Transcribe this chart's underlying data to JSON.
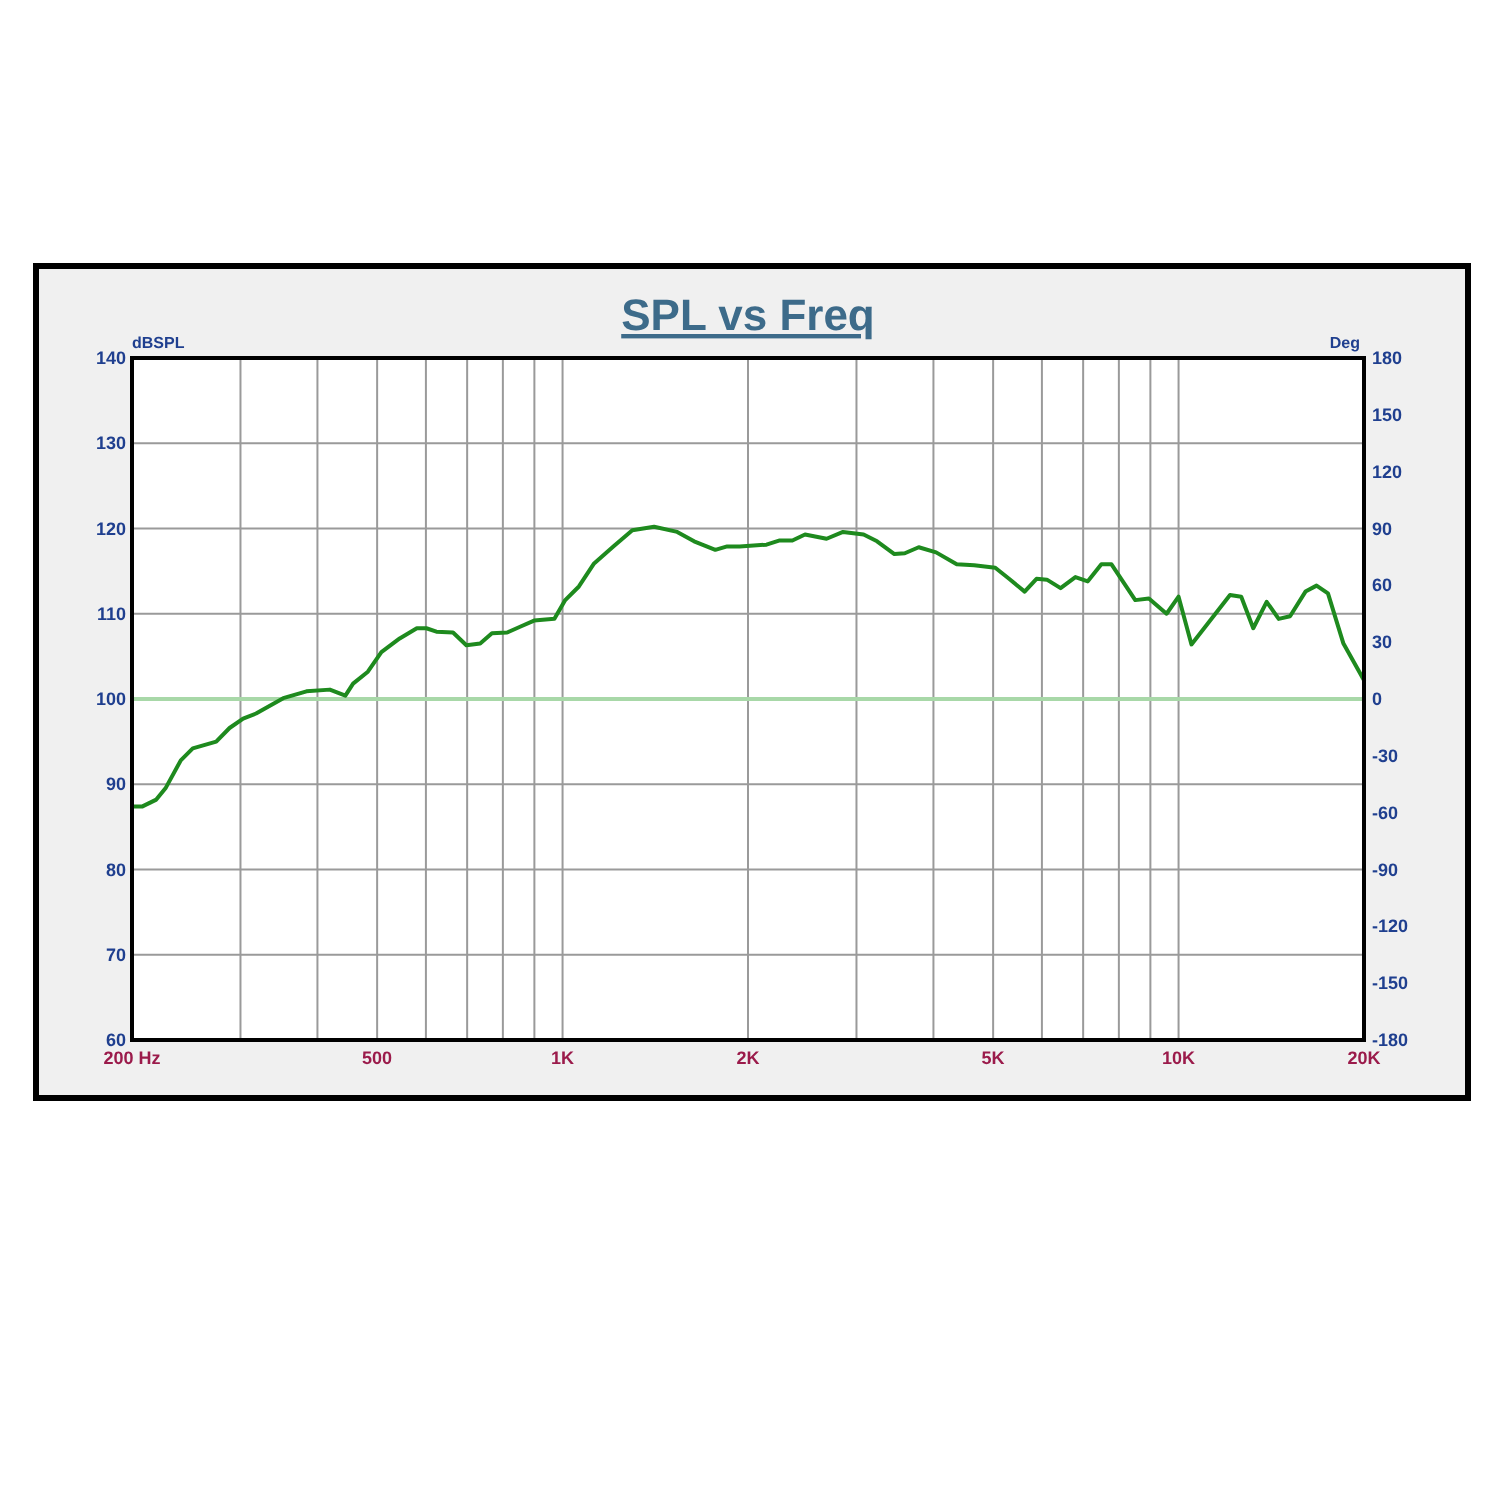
{
  "chart_data": {
    "type": "line",
    "title": "SPL vs Freq",
    "ylabel": "dBSPL",
    "y2label": "Deg",
    "log": "x",
    "grid": true,
    "line_style": "solid",
    "marker": "none",
    "xlim": [
      200,
      20000
    ],
    "xticks": [
      {
        "value": 200,
        "label": "200  Hz"
      },
      {
        "value": 300,
        "label": null
      },
      {
        "value": 400,
        "label": null
      },
      500,
      {
        "value": 600,
        "label": null
      },
      {
        "value": 700,
        "label": null
      },
      {
        "value": 800,
        "label": null
      },
      {
        "value": 900,
        "label": null
      },
      {
        "value": 1000,
        "label": "1K"
      },
      {
        "value": 2000,
        "label": "2K"
      },
      {
        "value": 3000,
        "label": null
      },
      {
        "value": 4000,
        "label": null
      },
      {
        "value": 5000,
        "label": "5K"
      },
      {
        "value": 6000,
        "label": null
      },
      {
        "value": 7000,
        "label": null
      },
      {
        "value": 8000,
        "label": null
      },
      {
        "value": 9000,
        "label": null
      },
      {
        "value": 10000,
        "label": "10K"
      },
      {
        "value": 20000,
        "label": "20K"
      }
    ],
    "ylim": [
      60,
      140
    ],
    "yticks": [
      60,
      70,
      80,
      90,
      100,
      110,
      120,
      130,
      140
    ],
    "y2lim": [
      -180,
      180
    ],
    "y2ticks": [
      -180,
      -150,
      -120,
      -90,
      -60,
      -30,
      0,
      30,
      60,
      90,
      120,
      150,
      180
    ],
    "ref_lines": [
      {
        "axis": "y2",
        "value": 0,
        "color": "#a8d8a8"
      }
    ],
    "series": [
      {
        "color": "#1e8a1e",
        "x": [
          200,
          208,
          219,
          227,
          240,
          251,
          274,
          288,
          303,
          318,
          352,
          384,
          419,
          444,
          457,
          483,
          508,
          544,
          580,
          601,
          624,
          664,
          698,
          735,
          768,
          813,
          855,
          899,
          970,
          1010,
          1063,
          1125,
          1209,
          1298,
          1408,
          1535,
          1635,
          1770,
          1850,
          1939,
          2143,
          2252,
          2361,
          2475,
          2683,
          2853,
          3081,
          3240,
          3457,
          3594,
          3786,
          4040,
          4364,
          4658,
          5040,
          5307,
          5625,
          5880,
          6113,
          6434,
          6800,
          7123,
          7493,
          7783,
          8506,
          8950,
          9562,
          10000,
          10494,
          12120,
          12640,
          13220,
          13900,
          14540,
          15170,
          16070,
          16750,
          17480,
          18520,
          20000
        ],
        "values": [
          87.4,
          87.4,
          88.2,
          89.6,
          92.8,
          94.2,
          95.0,
          96.6,
          97.7,
          98.3,
          100.1,
          100.9,
          101.1,
          100.4,
          101.8,
          103.2,
          105.5,
          107.1,
          108.3,
          108.3,
          107.9,
          107.8,
          106.3,
          106.5,
          107.7,
          107.8,
          108.5,
          109.2,
          109.4,
          111.6,
          113.2,
          115.9,
          117.9,
          119.8,
          120.2,
          119.6,
          118.5,
          117.5,
          117.9,
          117.9,
          118.1,
          118.6,
          118.6,
          119.3,
          118.8,
          119.6,
          119.3,
          118.5,
          117.0,
          117.1,
          117.8,
          117.2,
          115.8,
          115.7,
          115.4,
          114.1,
          112.6,
          114.1,
          114.0,
          113.0,
          114.3,
          113.8,
          115.8,
          115.8,
          111.6,
          111.8,
          110.0,
          112.0,
          106.4,
          112.2,
          112.0,
          108.3,
          111.4,
          109.4,
          109.7,
          112.6,
          113.3,
          112.4,
          106.5,
          102.2
        ]
      }
    ]
  }
}
